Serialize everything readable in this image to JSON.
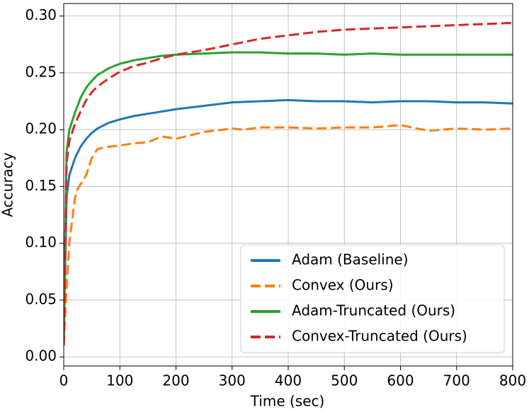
{
  "chart_data": {
    "type": "line",
    "xlabel": "Time (sec)",
    "ylabel": "Accuracy",
    "xlim": [
      0,
      800
    ],
    "ylim": [
      -0.008,
      0.311
    ],
    "xticks": [
      0,
      100,
      200,
      300,
      400,
      500,
      600,
      700,
      800
    ],
    "yticks": [
      {
        "value": 0,
        "label": "0.00"
      },
      {
        "value": 0.05,
        "label": "0.05"
      },
      {
        "value": 0.1,
        "label": "0.10"
      },
      {
        "value": 0.15,
        "label": "0.15"
      },
      {
        "value": 0.2,
        "label": "0.20"
      },
      {
        "value": 0.25,
        "label": "0.25"
      },
      {
        "value": 0.3,
        "label": "0.30"
      }
    ],
    "grid": true,
    "legend": "lower right",
    "series": [
      {
        "name": "Adam (Baseline)",
        "color": "#1f77b4",
        "linestyle": "solid",
        "x": [
          0,
          5,
          10,
          20,
          30,
          40,
          50,
          60,
          80,
          100,
          125,
          150,
          175,
          200,
          250,
          300,
          350,
          400,
          450,
          500,
          550,
          600,
          650,
          700,
          750,
          800
        ],
        "values": [
          0.01,
          0.14,
          0.16,
          0.175,
          0.185,
          0.192,
          0.197,
          0.201,
          0.206,
          0.209,
          0.212,
          0.214,
          0.216,
          0.218,
          0.221,
          0.224,
          0.225,
          0.226,
          0.225,
          0.225,
          0.224,
          0.225,
          0.225,
          0.224,
          0.224,
          0.223
        ]
      },
      {
        "name": "Convex (Ours)",
        "color": "#ff7f0e",
        "linestyle": "dashed",
        "x": [
          0,
          5,
          10,
          20,
          25,
          40,
          50,
          60,
          80,
          100,
          125,
          150,
          175,
          200,
          250,
          300,
          320,
          350,
          400,
          450,
          500,
          550,
          600,
          650,
          700,
          750,
          800
        ],
        "values": [
          0.01,
          0.06,
          0.1,
          0.14,
          0.148,
          0.16,
          0.175,
          0.183,
          0.185,
          0.186,
          0.188,
          0.189,
          0.194,
          0.192,
          0.198,
          0.201,
          0.2,
          0.202,
          0.202,
          0.201,
          0.202,
          0.202,
          0.204,
          0.199,
          0.201,
          0.2,
          0.201
        ]
      },
      {
        "name": "Adam-Truncated (Ours)",
        "color": "#2ca02c",
        "linestyle": "solid",
        "x": [
          0,
          5,
          10,
          20,
          30,
          40,
          50,
          60,
          80,
          100,
          125,
          150,
          175,
          200,
          250,
          300,
          350,
          400,
          450,
          500,
          550,
          600,
          650,
          700,
          750,
          800
        ],
        "values": [
          0.01,
          0.18,
          0.2,
          0.215,
          0.228,
          0.237,
          0.243,
          0.248,
          0.254,
          0.258,
          0.261,
          0.263,
          0.265,
          0.266,
          0.267,
          0.268,
          0.268,
          0.267,
          0.267,
          0.266,
          0.267,
          0.266,
          0.266,
          0.266,
          0.266,
          0.266
        ]
      },
      {
        "name": "Convex-Truncated (Ours)",
        "color": "#d62728",
        "linestyle": "dashed",
        "x": [
          0,
          5,
          10,
          20,
          30,
          40,
          50,
          60,
          80,
          100,
          125,
          150,
          175,
          200,
          250,
          300,
          350,
          400,
          450,
          500,
          550,
          600,
          650,
          700,
          750,
          800
        ],
        "values": [
          0.01,
          0.17,
          0.19,
          0.205,
          0.216,
          0.226,
          0.233,
          0.238,
          0.245,
          0.251,
          0.256,
          0.259,
          0.263,
          0.266,
          0.27,
          0.275,
          0.28,
          0.283,
          0.286,
          0.288,
          0.289,
          0.29,
          0.291,
          0.292,
          0.293,
          0.294
        ]
      }
    ]
  }
}
